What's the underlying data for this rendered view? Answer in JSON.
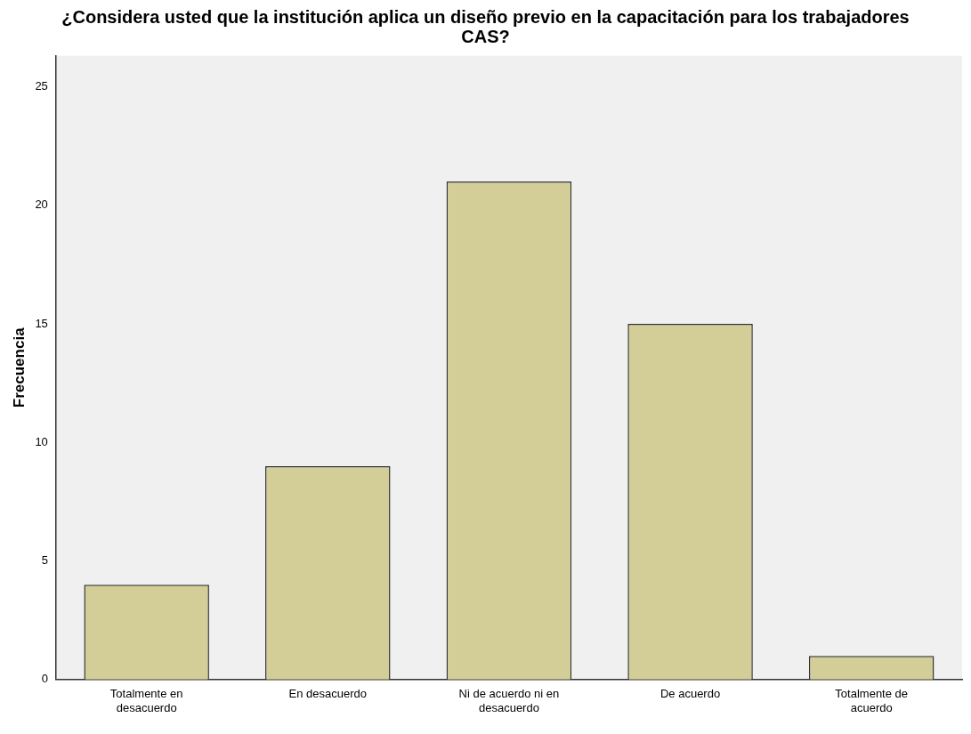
{
  "chart_data": {
    "type": "bar",
    "title": "¿Considera usted que la institución aplica un diseño previo en la capacitación para los trabajadores CAS?",
    "ylabel": "Frecuencia",
    "categories": [
      "Totalmente en desacuerdo",
      "En desacuerdo",
      "Ni de acuerdo ni en desacuerdo",
      "De acuerdo",
      "Totalmente de acuerdo"
    ],
    "values": [
      4,
      9,
      21,
      15,
      1
    ],
    "color": "#d3ce97",
    "ylim": [
      0,
      26.3
    ],
    "yticks": [
      0,
      5,
      10,
      15,
      20,
      25
    ],
    "grid": false,
    "legend": false
  }
}
